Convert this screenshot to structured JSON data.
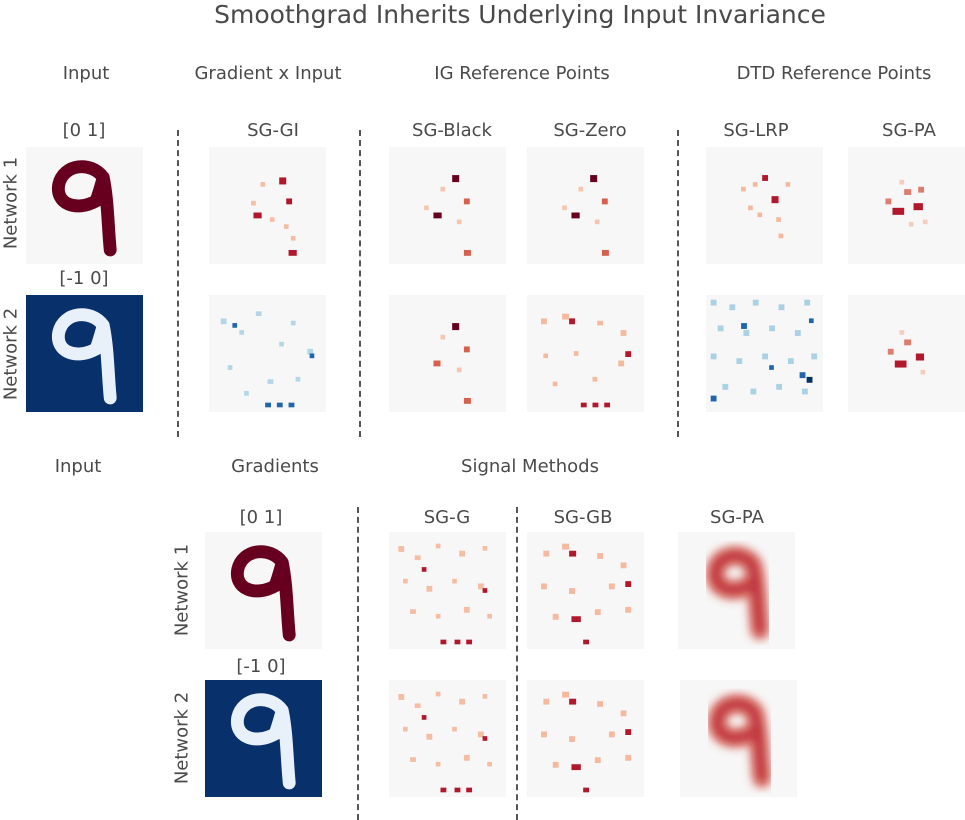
{
  "title": "Smoothgrad Inherits Underlying Input Invariance",
  "top": {
    "headers": {
      "input": "Input",
      "gxi": "Gradient x Input",
      "ig": "IG Reference Points",
      "dtd": "DTD Reference Points"
    },
    "input_ranges": [
      "[0 1]",
      "[-1 0]"
    ],
    "columns": [
      "SG-GI",
      "SG-Black",
      "SG-Zero",
      "SG-LRP",
      "SG-PA"
    ],
    "rows": [
      "Network 1",
      "Network 2"
    ]
  },
  "bottom": {
    "headers": {
      "input": "Input",
      "gradients": "Gradients",
      "signal": "Signal Methods"
    },
    "input_ranges": [
      "[0 1]",
      "[-1 0]"
    ],
    "columns": [
      "SG-G",
      "SG-GB",
      "SG-PA"
    ],
    "rows": [
      "Network 1",
      "Network 2"
    ]
  },
  "colors": {
    "text": "#4a4a4a",
    "panel_bg": "#f7f7f7",
    "digit_dark_red": "#67001f",
    "digit_navy_bg": "#08306b",
    "heat_red": "#b2182b",
    "heat_blue": "#2166ac"
  }
}
